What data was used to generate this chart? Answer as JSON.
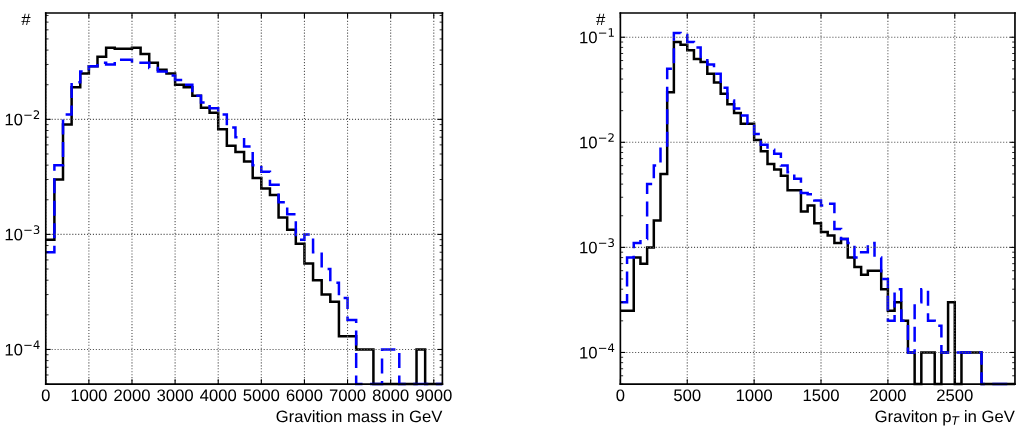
{
  "chart_data": [
    {
      "type": "histogram",
      "xlabel": "Gravition mass in GeV",
      "ylabel": "#",
      "log": "y",
      "grid": true,
      "bins": [
        0,
        200,
        400,
        600,
        800,
        1000,
        1200,
        1400,
        1600,
        1800,
        2000,
        2200,
        2400,
        2600,
        2800,
        3000,
        3200,
        3400,
        3600,
        3800,
        4000,
        4200,
        4400,
        4600,
        4800,
        5000,
        5200,
        5400,
        5600,
        5800,
        6000,
        6200,
        6400,
        6600,
        6800,
        7000,
        7200,
        7400,
        7600,
        7800,
        8000,
        8200,
        8400,
        8600,
        8800,
        9000,
        9200
      ],
      "xlim": [
        0,
        9200
      ],
      "xticks": [
        0,
        1000,
        2000,
        3000,
        4000,
        5000,
        6000,
        7000,
        8000,
        9000
      ],
      "ylim": [
        5e-05,
        0.084
      ],
      "yticks": [
        {
          "value": 0.0001,
          "label": "10$^{−4}$"
        },
        {
          "value": 0.001,
          "label": "10$^{−3}$"
        },
        {
          "value": 0.01,
          "label": "10$^{−2}$"
        }
      ],
      "series": [
        {
          "color": "#000000",
          "line_style": "solid",
          "values": [
            0.0009,
            0.003,
            0.009,
            0.019,
            0.025,
            0.029,
            0.035,
            0.042,
            0.041,
            0.041,
            0.042,
            0.037,
            0.031,
            0.027,
            0.025,
            0.02,
            0.019,
            0.016,
            0.0126,
            0.0114,
            0.0082,
            0.0059,
            0.0052,
            0.0043,
            0.0031,
            0.0025,
            0.0022,
            0.0014,
            0.0011,
            0.00083,
            0.00056,
            0.0004,
            0.0003,
            0.00026,
            0.00013,
            0.00013,
            0.0001,
            0.0001,
            null,
            null,
            null,
            null,
            null,
            0.0001,
            null,
            null
          ]
        },
        {
          "color": "#0000ff",
          "line_style": "dashed",
          "values": [
            0.0007,
            0.004,
            0.011,
            0.021,
            0.026,
            0.029,
            0.031,
            0.03,
            0.033,
            0.033,
            0.031,
            0.031,
            0.028,
            0.026,
            0.024,
            0.022,
            0.02,
            0.016,
            0.014,
            0.0125,
            0.011,
            0.0085,
            0.007,
            0.0058,
            0.004,
            0.0035,
            0.0027,
            0.0019,
            0.0015,
            0.0009,
            0.001,
            0.0007,
            0.0005,
            0.00038,
            0.00028,
            0.00018,
            null,
            null,
            null,
            0.0001,
            0.0001,
            null,
            null,
            null,
            null,
            null
          ]
        }
      ]
    },
    {
      "type": "histogram",
      "xlabel": "Graviton p$_{T}$ in GeV",
      "ylabel": "#",
      "log": "y",
      "grid": true,
      "bins": [
        0,
        50,
        100,
        150,
        200,
        250,
        300,
        350,
        400,
        450,
        500,
        550,
        600,
        650,
        700,
        750,
        800,
        850,
        900,
        950,
        1000,
        1050,
        1100,
        1150,
        1200,
        1250,
        1300,
        1350,
        1400,
        1450,
        1500,
        1550,
        1600,
        1650,
        1700,
        1750,
        1800,
        1850,
        1900,
        1950,
        2000,
        2050,
        2100,
        2150,
        2200,
        2250,
        2300,
        2350,
        2400,
        2450,
        2500,
        2550,
        2600,
        2650,
        2700,
        2750,
        2800,
        2850,
        2900,
        2950
      ],
      "xlim": [
        0,
        2950
      ],
      "xticks": [
        0,
        500,
        1000,
        1500,
        2000,
        2500
      ],
      "ylim": [
        5e-05,
        0.17
      ],
      "yticks": [
        {
          "value": 0.0001,
          "label": "10$^{−4}$"
        },
        {
          "value": 0.001,
          "label": "10$^{−3}$"
        },
        {
          "value": 0.01,
          "label": "10$^{−2}$"
        },
        {
          "value": 0.1,
          "label": "10$^{−1}$"
        }
      ],
      "series": [
        {
          "color": "#000000",
          "line_style": "solid",
          "values": [
            0.00025,
            0.00025,
            0.0008,
            0.0007,
            0.001,
            0.0018,
            0.005,
            0.03,
            0.09,
            0.085,
            0.075,
            0.062,
            0.058,
            0.045,
            0.037,
            0.029,
            0.023,
            0.019,
            0.015,
            0.015,
            0.0105,
            0.0082,
            0.0062,
            0.0055,
            0.0048,
            0.0035,
            0.0035,
            0.0022,
            0.0025,
            0.0017,
            0.0014,
            0.0013,
            0.0011,
            0.0012,
            0.0008,
            0.00065,
            0.00055,
            0.0006,
            0.0006,
            0.0004,
            0.00025,
            0.0003,
            0.0002,
            0.0001,
            null,
            0.0001,
            0.0001,
            null,
            0.0001,
            0.0003,
            null,
            0.0001,
            0.0001,
            0.0001,
            null,
            null,
            null,
            null,
            null
          ]
        },
        {
          "color": "#0000ff",
          "line_style": "dashed",
          "values": [
            0.0003,
            0.0008,
            0.0011,
            0.0012,
            0.004,
            0.006,
            0.009,
            0.05,
            0.11,
            0.105,
            0.09,
            0.08,
            0.065,
            0.055,
            0.045,
            0.033,
            0.025,
            0.021,
            0.018,
            0.015,
            0.012,
            0.0095,
            0.0085,
            0.0078,
            0.006,
            0.0052,
            0.0045,
            0.0033,
            0.0032,
            0.0028,
            0.0025,
            0.0026,
            0.0015,
            0.0012,
            0.0011,
            0.0008,
            0.0009,
            0.0011,
            0.0008,
            0.0005,
            0.0002,
            0.0004,
            0.0002,
            0.0001,
            0.0003,
            0.0004,
            0.0002,
            0.00018,
            0.0001,
            0.0001,
            0.0001,
            0.0001,
            0.0001,
            0.0001,
            null,
            null,
            null,
            null,
            null
          ]
        }
      ]
    }
  ]
}
